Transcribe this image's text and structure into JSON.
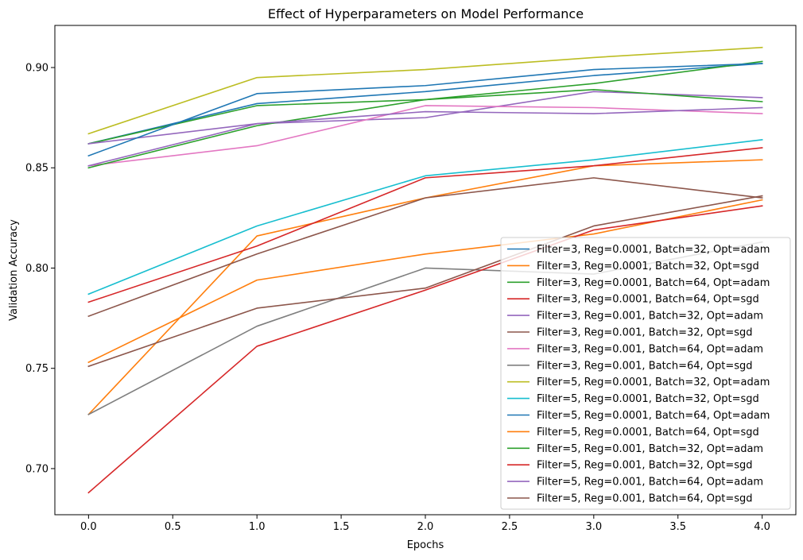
{
  "chart_data": {
    "type": "line",
    "title": "Effect of Hyperparameters on Model Performance",
    "xlabel": "Epochs",
    "ylabel": "Validation Accuracy",
    "xlim": [
      -0.2,
      4.2
    ],
    "ylim": [
      0.677,
      0.921
    ],
    "x": [
      0,
      1,
      2,
      3,
      4
    ],
    "xticks": [
      0.0,
      0.5,
      1.0,
      1.5,
      2.0,
      2.5,
      3.0,
      3.5,
      4.0
    ],
    "xtick_labels": [
      "0.0",
      "0.5",
      "1.0",
      "1.5",
      "2.0",
      "2.5",
      "3.0",
      "3.5",
      "4.0"
    ],
    "yticks": [
      0.7,
      0.75,
      0.8,
      0.85,
      0.9
    ],
    "ytick_labels": [
      "0.70",
      "0.75",
      "0.80",
      "0.85",
      "0.90"
    ],
    "grid": false,
    "legend_position": "lower-right",
    "series": [
      {
        "name": "Filter=3, Reg=0.0001, Batch=32, Opt=adam",
        "color": "#1f77b4",
        "values": [
          0.862,
          0.882,
          0.888,
          0.896,
          0.902
        ]
      },
      {
        "name": "Filter=3, Reg=0.0001, Batch=32, Opt=sgd",
        "color": "#ff7f0e",
        "values": [
          0.727,
          0.816,
          0.835,
          0.851,
          0.854
        ]
      },
      {
        "name": "Filter=3, Reg=0.0001, Batch=64, Opt=adam",
        "color": "#2ca02c",
        "values": [
          0.862,
          0.881,
          0.884,
          0.892,
          0.903
        ]
      },
      {
        "name": "Filter=3, Reg=0.0001, Batch=64, Opt=sgd",
        "color": "#d62728",
        "values": [
          0.783,
          0.811,
          0.845,
          0.851,
          0.86
        ]
      },
      {
        "name": "Filter=3, Reg=0.001, Batch=32, Opt=adam",
        "color": "#9467bd",
        "values": [
          0.862,
          0.872,
          0.875,
          0.888,
          0.885
        ]
      },
      {
        "name": "Filter=3, Reg=0.001, Batch=32, Opt=sgd",
        "color": "#8c564b",
        "values": [
          0.776,
          0.807,
          0.835,
          0.845,
          0.835
        ]
      },
      {
        "name": "Filter=3, Reg=0.001, Batch=64, Opt=adam",
        "color": "#e377c2",
        "values": [
          0.851,
          0.861,
          0.881,
          0.88,
          0.877
        ]
      },
      {
        "name": "Filter=3, Reg=0.001, Batch=64, Opt=sgd",
        "color": "#7f7f7f",
        "values": [
          0.727,
          0.771,
          0.8,
          0.797,
          0.813
        ]
      },
      {
        "name": "Filter=5, Reg=0.0001, Batch=32, Opt=adam",
        "color": "#bcbd22",
        "values": [
          0.867,
          0.895,
          0.899,
          0.905,
          0.91
        ]
      },
      {
        "name": "Filter=5, Reg=0.0001, Batch=32, Opt=sgd",
        "color": "#17becf",
        "values": [
          0.787,
          0.821,
          0.846,
          0.854,
          0.864
        ]
      },
      {
        "name": "Filter=5, Reg=0.0001, Batch=64, Opt=adam",
        "color": "#1f77b4",
        "values": [
          0.856,
          0.887,
          0.891,
          0.899,
          0.902
        ]
      },
      {
        "name": "Filter=5, Reg=0.0001, Batch=64, Opt=sgd",
        "color": "#ff7f0e",
        "values": [
          0.753,
          0.794,
          0.807,
          0.817,
          0.834
        ]
      },
      {
        "name": "Filter=5, Reg=0.001, Batch=32, Opt=adam",
        "color": "#2ca02c",
        "values": [
          0.85,
          0.871,
          0.884,
          0.889,
          0.883
        ]
      },
      {
        "name": "Filter=5, Reg=0.001, Batch=32, Opt=sgd",
        "color": "#d62728",
        "values": [
          0.688,
          0.761,
          0.789,
          0.819,
          0.831
        ]
      },
      {
        "name": "Filter=5, Reg=0.001, Batch=64, Opt=adam",
        "color": "#9467bd",
        "values": [
          0.851,
          0.872,
          0.878,
          0.877,
          0.88
        ]
      },
      {
        "name": "Filter=5, Reg=0.001, Batch=64, Opt=sgd",
        "color": "#8c564b",
        "values": [
          0.751,
          0.78,
          0.79,
          0.821,
          0.836
        ]
      }
    ]
  }
}
